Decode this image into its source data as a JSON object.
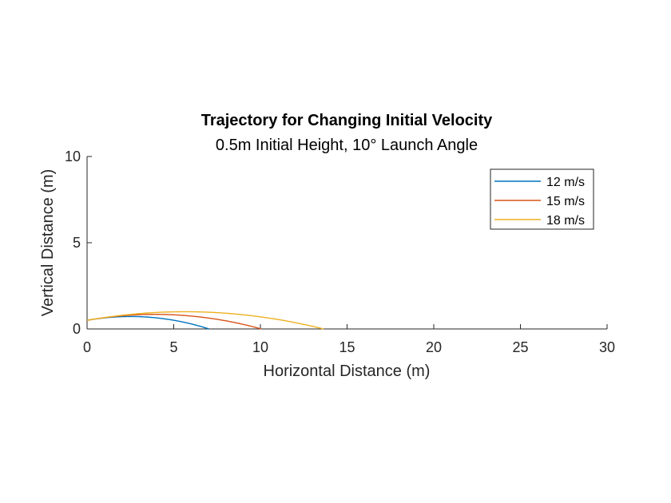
{
  "chart_data": {
    "type": "line",
    "title": "Trajectory for Changing Initial Velocity",
    "subtitle": "0.5m Initial Height, 10° Launch Angle",
    "xlabel": "Horizontal Distance (m)",
    "ylabel": "Vertical Distance (m)",
    "xlim": [
      0,
      30
    ],
    "ylim": [
      0,
      10
    ],
    "xticks": [
      0,
      5,
      10,
      15,
      20,
      25,
      30
    ],
    "xtick_labels": [
      "0",
      "5",
      "10",
      "15",
      "20",
      "25",
      "30"
    ],
    "yticks": [
      0,
      5,
      10
    ],
    "ytick_labels": [
      "0",
      "5",
      "10"
    ],
    "grid": false,
    "legend_position": "top-right",
    "initial_height_m": 0.5,
    "launch_angle_deg": 10,
    "g": 9.81,
    "series": [
      {
        "name": "12 m/s",
        "v0": 12,
        "color": "#0072BD"
      },
      {
        "name": "15 m/s",
        "v0": 15,
        "color": "#D95319"
      },
      {
        "name": "18 m/s",
        "v0": 18,
        "color": "#EDB120"
      }
    ]
  }
}
